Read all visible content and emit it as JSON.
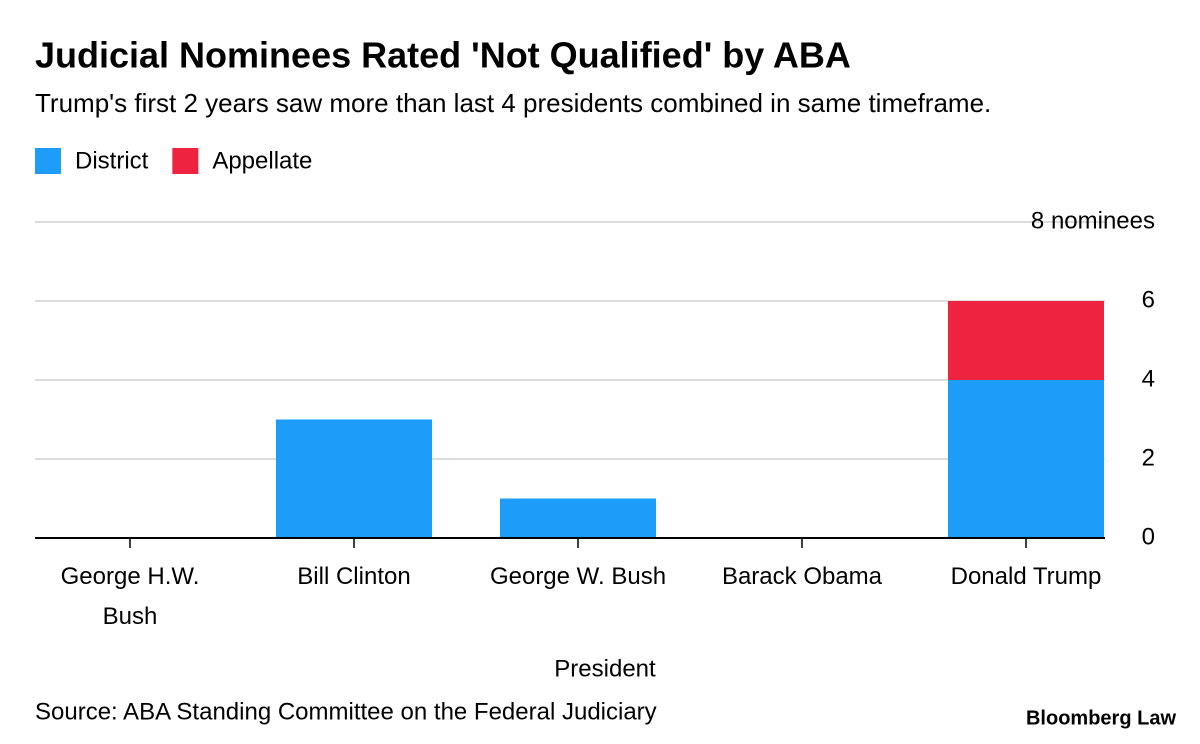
{
  "chart_data": {
    "type": "stacked_bar",
    "title": "Judicial Nominees Rated 'Not Qualified' by ABA",
    "subtitle": "Trump's first 2 years saw more than last 4 presidents combined in same timeframe.",
    "x_label": "President",
    "source": "Source: ABA Standing Committee on the Federal Judiciary",
    "brand": "Bloomberg Law",
    "categories": [
      "George H.W. Bush",
      "Bill Clinton",
      "George W. Bush",
      "Barack Obama",
      "Donald Trump"
    ],
    "series": [
      {
        "name": "District",
        "color": "#1e9df8",
        "values": [
          0,
          3,
          1,
          0,
          4
        ]
      },
      {
        "name": "Appellate",
        "color": "#ee2340",
        "values": [
          0,
          0,
          0,
          0,
          2
        ]
      }
    ],
    "ylim": [
      0,
      8
    ],
    "yticks": [
      0,
      2,
      4,
      6,
      {
        "value": 8,
        "label": "8 nominees"
      }
    ],
    "grid": true
  }
}
